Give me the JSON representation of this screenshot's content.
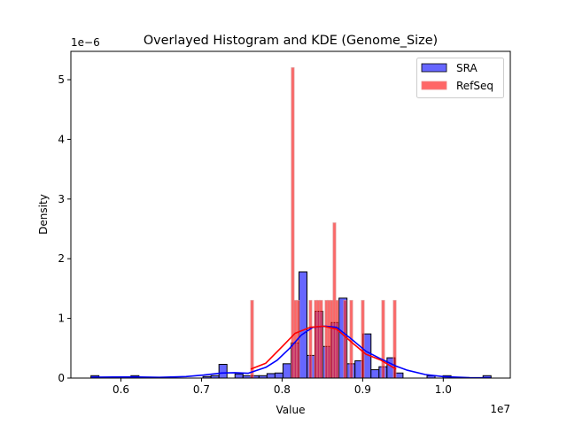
{
  "chart_data": {
    "type": "bar",
    "title": "Overlayed Histogram and KDE (Genome_Size)",
    "xlabel": "Value",
    "ylabel": "Density",
    "x_offset_label": "1e7",
    "y_offset_label": "1e−6",
    "xlim": [
      0.5379,
      1.0832
    ],
    "ylim": [
      0,
      5.475
    ],
    "x_ticks": [
      0.6,
      0.7,
      0.8,
      0.9,
      1.0
    ],
    "x_tick_labels": [
      "0.6",
      "0.7",
      "0.8",
      "0.9",
      "1.0"
    ],
    "y_ticks": [
      0,
      1,
      2,
      3,
      4,
      5
    ],
    "y_tick_labels": [
      "0",
      "1",
      "2",
      "3",
      "4",
      "5"
    ],
    "grid": false,
    "legend_position": "top-right",
    "series": [
      {
        "name": "SRA",
        "color": "#0000ff",
        "fill": "#6666ff",
        "bin_start": 0.5628,
        "bin_width": 0.00993,
        "densities": [
          0.04,
          0,
          0,
          0,
          0,
          0.04,
          0,
          0,
          0,
          0,
          0,
          0,
          0,
          0,
          0.025,
          0.04,
          0.23,
          0,
          0.07,
          0.04,
          0.04,
          0.04,
          0.075,
          0.085,
          0.24,
          0.59,
          1.78,
          0.38,
          1.12,
          0.53,
          0.93,
          1.34,
          0.24,
          0.29,
          0.74,
          0.14,
          0.19,
          0.34,
          0.085,
          0,
          0,
          0,
          0.04,
          0,
          0.04,
          0,
          0,
          0,
          0,
          0.04
        ],
        "kde": {
          "x": [
            0.5632,
            0.6148,
            0.6478,
            0.6808,
            0.7028,
            0.7248,
            0.7413,
            0.7578,
            0.7798,
            0.794,
            0.8094,
            0.8237,
            0.838,
            0.8534,
            0.8677,
            0.8864,
            0.904,
            0.9227,
            0.9414,
            0.9557,
            0.9777,
            0.9997,
            1.0327,
            1.059
          ],
          "y": [
            0.015,
            0.02,
            0.012,
            0.025,
            0.05,
            0.085,
            0.09,
            0.08,
            0.18,
            0.3,
            0.5,
            0.72,
            0.85,
            0.87,
            0.85,
            0.65,
            0.45,
            0.32,
            0.2,
            0.13,
            0.06,
            0.025,
            0.008,
            0.005
          ]
        }
      },
      {
        "name": "RefSeq",
        "color": "#ff0000",
        "fill": "#ff6666",
        "bin_width": 0.0033,
        "bin_lefts": [
          0.7611,
          0.8116,
          0.8149,
          0.8182,
          0.8336,
          0.8402,
          0.8435,
          0.8468,
          0.8534,
          0.8567,
          0.86,
          0.8633,
          0.8666,
          0.8765,
          0.8842,
          0.8985,
          0.9238,
          0.9381
        ],
        "densities": [
          1.3,
          5.2,
          1.3,
          1.3,
          1.3,
          1.3,
          1.3,
          1.3,
          1.3,
          1.3,
          1.3,
          2.6,
          1.3,
          1.3,
          1.3,
          1.3,
          1.3,
          1.3
        ],
        "kde": {
          "x": [
            0.7611,
            0.7798,
            0.8017,
            0.816,
            0.8347,
            0.8512,
            0.8677,
            0.8864,
            0.904,
            0.9227,
            0.9414
          ],
          "y": [
            0.15,
            0.25,
            0.55,
            0.75,
            0.85,
            0.87,
            0.82,
            0.6,
            0.4,
            0.3,
            0.15
          ]
        }
      }
    ]
  }
}
